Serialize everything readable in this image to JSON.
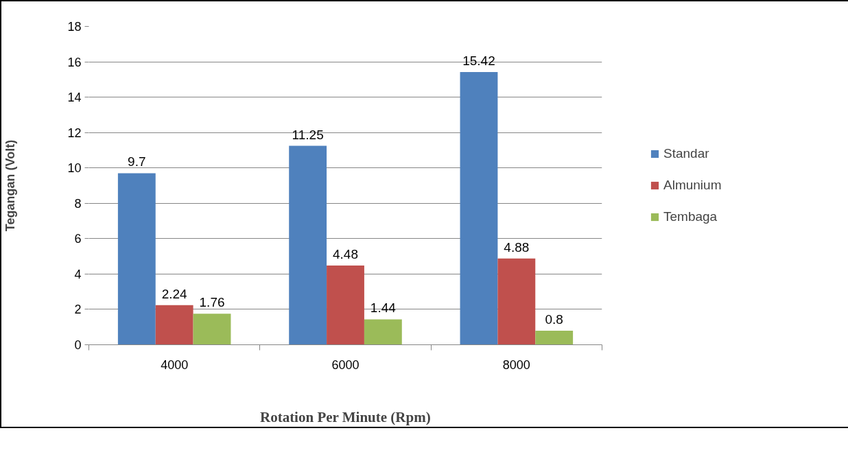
{
  "chart_data": {
    "type": "bar",
    "xlabel": "Rotation Per Minute (Rpm)",
    "ylabel": "Tegangan (Volt)",
    "categories": [
      "4000",
      "6000",
      "8000"
    ],
    "series": [
      {
        "name": "Standar",
        "color": "#4f81bd",
        "values": [
          9.7,
          11.25,
          15.42
        ]
      },
      {
        "name": "Almunium",
        "color": "#c0504d",
        "values": [
          2.24,
          4.48,
          4.88
        ]
      },
      {
        "name": "Tembaga",
        "color": "#9bbb59",
        "values": [
          1.76,
          1.44,
          0.8
        ]
      }
    ],
    "ylim": [
      0,
      18
    ],
    "yticks": [
      0,
      2,
      4,
      6,
      8,
      10,
      12,
      14,
      16,
      18
    ],
    "grid": "y",
    "legend": "right",
    "data_labels": true
  }
}
